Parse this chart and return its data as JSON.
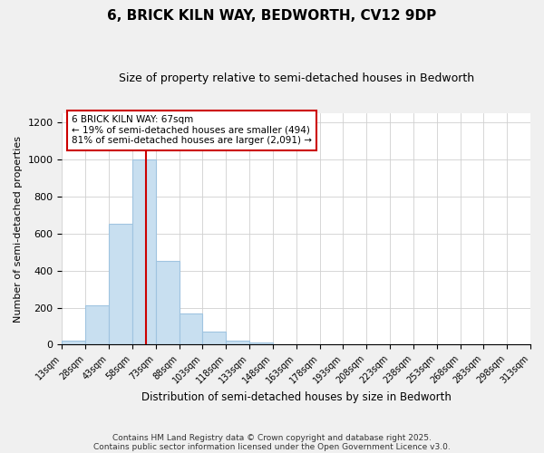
{
  "title": "6, BRICK KILN WAY, BEDWORTH, CV12 9DP",
  "subtitle": "Size of property relative to semi-detached houses in Bedworth",
  "xlabel": "Distribution of semi-detached houses by size in Bedworth",
  "ylabel": "Number of semi-detached properties",
  "bar_color": "#c8dff0",
  "bar_edge_color": "#a0c4e0",
  "annotation_line_color": "#cc0000",
  "annotation_box_color": "#cc0000",
  "property_size": 67,
  "property_label": "6 BRICK KILN WAY: 67sqm",
  "pct_smaller": 19,
  "pct_larger": 81,
  "count_smaller": 494,
  "count_larger": 2091,
  "bin_edges": [
    13,
    28,
    43,
    58,
    73,
    88,
    103,
    118,
    133,
    148,
    163,
    178,
    193,
    208,
    223,
    238,
    253,
    268,
    283,
    298,
    313
  ],
  "bin_labels": [
    "13sqm",
    "28sqm",
    "43sqm",
    "58sqm",
    "73sqm",
    "88sqm",
    "103sqm",
    "118sqm",
    "133sqm",
    "148sqm",
    "163sqm",
    "178sqm",
    "193sqm",
    "208sqm",
    "223sqm",
    "238sqm",
    "253sqm",
    "268sqm",
    "283sqm",
    "298sqm",
    "313sqm"
  ],
  "counts": [
    20,
    210,
    650,
    1000,
    450,
    170,
    70,
    20,
    10,
    0,
    0,
    0,
    0,
    0,
    0,
    0,
    0,
    0,
    0,
    0
  ],
  "ylim": [
    0,
    1250
  ],
  "yticks": [
    0,
    200,
    400,
    600,
    800,
    1000,
    1200
  ],
  "footnote1": "Contains HM Land Registry data © Crown copyright and database right 2025.",
  "footnote2": "Contains public sector information licensed under the Open Government Licence v3.0.",
  "background_color": "#f0f0f0",
  "plot_bg_color": "#ffffff"
}
